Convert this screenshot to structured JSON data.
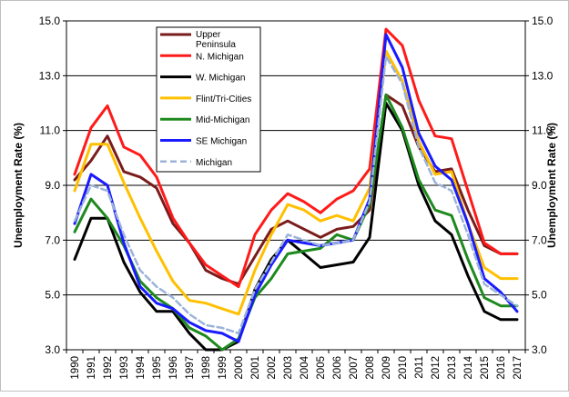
{
  "chart_data": {
    "type": "line",
    "title": "",
    "xlabel": "",
    "ylabel": "Unemployment Rate (%)",
    "y2label": "Unemployment Rate (%)",
    "ylim": [
      3.0,
      15.0
    ],
    "y_ticks": [
      "3.0",
      "5.0",
      "7.0",
      "9.0",
      "11.0",
      "13.0",
      "15.0"
    ],
    "y_tick_values": [
      3,
      5,
      7,
      9,
      11,
      13,
      15
    ],
    "grid": true,
    "legend_position": "top-left inside",
    "categories": [
      "1990",
      "1991",
      "1992",
      "1993",
      "1994",
      "1995",
      "1996",
      "1997",
      "1998",
      "1999",
      "2000",
      "2001",
      "2002",
      "2003",
      "2004",
      "2005",
      "2006",
      "2007",
      "2008",
      "2009",
      "2010",
      "2011",
      "2012",
      "2013",
      "2014",
      "2015",
      "2016",
      "2017"
    ],
    "series": [
      {
        "name": "Upper Peninsula",
        "color": "#7b1c1c",
        "dash": "",
        "values": [
          9.2,
          9.9,
          10.8,
          9.5,
          9.3,
          8.9,
          7.6,
          6.9,
          5.9,
          5.6,
          5.4,
          6.4,
          7.4,
          7.7,
          7.4,
          7.1,
          7.4,
          7.5,
          8.1,
          12.3,
          11.9,
          10.4,
          9.5,
          9.6,
          8.1,
          6.8,
          6.5,
          6.5
        ]
      },
      {
        "name": "N. Michigan",
        "color": "#ff1a1a",
        "dash": "",
        "values": [
          9.4,
          11.1,
          11.9,
          10.4,
          10.1,
          9.3,
          7.8,
          6.9,
          6.1,
          5.7,
          5.3,
          7.2,
          8.1,
          8.7,
          8.4,
          8.0,
          8.5,
          8.8,
          9.6,
          14.7,
          14.1,
          12.1,
          10.8,
          10.7,
          8.8,
          6.9,
          6.5,
          6.5
        ]
      },
      {
        "name": "W. Michigan",
        "color": "#000000",
        "dash": "",
        "values": [
          6.3,
          7.8,
          7.8,
          6.2,
          5.1,
          4.4,
          4.4,
          3.6,
          3.0,
          3.0,
          3.3,
          5.2,
          6.3,
          7.0,
          6.5,
          6.0,
          6.1,
          6.2,
          7.1,
          12.0,
          11.0,
          9.0,
          7.7,
          7.2,
          5.7,
          4.4,
          4.1,
          4.1
        ]
      },
      {
        "name": "Flint/Tri-Cities",
        "color": "#ffc000",
        "dash": "",
        "values": [
          8.8,
          10.5,
          10.5,
          9.1,
          7.8,
          6.6,
          5.5,
          4.8,
          4.7,
          4.5,
          4.3,
          5.9,
          7.2,
          8.3,
          8.1,
          7.7,
          7.9,
          7.7,
          8.9,
          13.9,
          12.8,
          10.6,
          9.4,
          9.5,
          7.6,
          6.0,
          5.6,
          5.6
        ]
      },
      {
        "name": "Mid-Michigan",
        "color": "#1e8a1e",
        "dash": "",
        "values": [
          7.3,
          8.5,
          7.8,
          6.8,
          5.5,
          4.9,
          4.5,
          3.8,
          3.5,
          3.0,
          3.4,
          4.9,
          5.6,
          6.5,
          6.6,
          6.7,
          7.2,
          7.0,
          8.3,
          12.3,
          11.1,
          9.2,
          8.1,
          7.9,
          6.3,
          4.9,
          4.6,
          4.6
        ]
      },
      {
        "name": "SE Michigan",
        "color": "#1a1aff",
        "dash": "",
        "values": [
          7.6,
          9.4,
          9.0,
          6.9,
          5.3,
          4.7,
          4.5,
          4.0,
          3.7,
          3.6,
          3.3,
          5.0,
          6.1,
          7.0,
          6.9,
          6.8,
          6.9,
          7.0,
          8.5,
          14.5,
          13.3,
          10.9,
          9.7,
          9.2,
          7.6,
          5.6,
          5.1,
          4.4
        ]
      },
      {
        "name": "Michigan",
        "color": "#9bb3d9",
        "dash": "7,4",
        "values": [
          7.7,
          9.0,
          8.8,
          7.2,
          5.9,
          5.3,
          4.9,
          4.3,
          3.9,
          3.8,
          3.6,
          5.2,
          6.2,
          7.2,
          7.0,
          6.8,
          6.9,
          7.0,
          8.4,
          13.7,
          12.7,
          10.4,
          9.1,
          8.8,
          7.2,
          5.4,
          5.0,
          4.6
        ]
      }
    ]
  }
}
